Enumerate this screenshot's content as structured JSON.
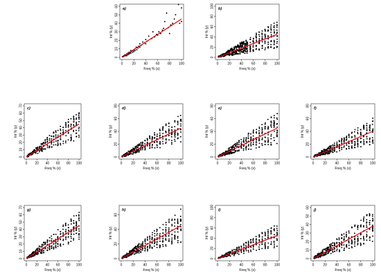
{
  "chart_data": [
    {
      "type": "scatter",
      "panel": "a)",
      "xlabel": "Freq % (x)",
      "ylabel": "Int % (y)",
      "xlim": [
        0,
        100
      ],
      "ylim": [
        0,
        60
      ],
      "xticks": [
        0,
        20,
        40,
        60,
        80,
        100
      ],
      "yticks": [
        0,
        10,
        20,
        30,
        40,
        50,
        60
      ],
      "fit": {
        "slope": 0.45,
        "intercept": 0
      },
      "series": [
        {
          "values": [
            [
              1,
              1
            ],
            [
              2,
              1
            ],
            [
              3,
              2
            ],
            [
              3,
              1
            ],
            [
              4,
              2
            ],
            [
              5,
              2
            ],
            [
              5,
              3
            ],
            [
              6,
              2
            ],
            [
              7,
              3
            ],
            [
              8,
              4
            ],
            [
              8,
              2
            ],
            [
              9,
              4
            ],
            [
              10,
              5
            ],
            [
              10,
              3
            ],
            [
              11,
              5
            ],
            [
              12,
              6
            ],
            [
              12,
              4
            ],
            [
              13,
              5
            ],
            [
              14,
              6
            ],
            [
              15,
              8
            ],
            [
              15,
              5
            ],
            [
              16,
              7
            ],
            [
              18,
              8
            ],
            [
              18,
              6
            ],
            [
              20,
              9
            ],
            [
              20,
              7
            ],
            [
              22,
              10
            ],
            [
              22,
              8
            ],
            [
              24,
              12
            ],
            [
              25,
              9
            ],
            [
              27,
              11
            ],
            [
              28,
              13
            ],
            [
              30,
              12
            ],
            [
              30,
              16
            ],
            [
              32,
              14
            ],
            [
              35,
              18
            ],
            [
              38,
              17
            ],
            [
              40,
              16
            ],
            [
              40,
              21
            ],
            [
              42,
              19
            ],
            [
              45,
              25
            ],
            [
              50,
              22
            ],
            [
              52,
              30
            ],
            [
              55,
              24
            ],
            [
              58,
              27
            ],
            [
              60,
              26
            ],
            [
              62,
              30
            ],
            [
              65,
              28
            ],
            [
              68,
              32
            ],
            [
              70,
              34
            ],
            [
              72,
              42
            ],
            [
              75,
              52
            ],
            [
              78,
              35
            ],
            [
              80,
              28
            ],
            [
              82,
              38
            ],
            [
              85,
              40
            ],
            [
              88,
              45
            ],
            [
              90,
              50
            ],
            [
              95,
              62
            ],
            [
              97,
              40
            ],
            [
              100,
              42
            ],
            [
              100,
              58
            ]
          ]
        }
      ]
    },
    {
      "type": "scatter",
      "panel": "b)",
      "xlabel": "Freq % (x)",
      "ylabel": "Int % (y)",
      "xlim": [
        0,
        100
      ],
      "ylim": [
        0,
        100
      ],
      "xticks": [
        0,
        20,
        40,
        60,
        80,
        100
      ],
      "yticks": [
        0,
        20,
        40,
        60,
        80,
        100
      ],
      "fit": {
        "slope": 0.45,
        "intercept": 0
      },
      "generated": {
        "columns": [
          2,
          4,
          6,
          8,
          10,
          12,
          14,
          16,
          18,
          20,
          22,
          24,
          26,
          28,
          30,
          32,
          34,
          36,
          38,
          40,
          42,
          44,
          46,
          48,
          50,
          55,
          60,
          65,
          70,
          75,
          80,
          85,
          90,
          95,
          100
        ],
        "spread": 0.6,
        "perColumn": 9,
        "max": 90
      }
    },
    {
      "type": "scatter",
      "panel": "c)",
      "xlabel": "Freq % (x)",
      "ylabel": "Int % (y)",
      "xlim": [
        0,
        100
      ],
      "ylim": [
        0,
        70
      ],
      "xticks": [
        0,
        20,
        40,
        60,
        80,
        100
      ],
      "yticks": [
        0,
        10,
        20,
        30,
        40,
        50,
        60,
        70
      ],
      "fit": {
        "slope": 0.45,
        "intercept": 0
      },
      "generated": {
        "columns": [
          2,
          4,
          6,
          8,
          10,
          12,
          14,
          16,
          18,
          20,
          22,
          25,
          28,
          30,
          33,
          36,
          40,
          44,
          48,
          52,
          56,
          60,
          65,
          70,
          75,
          80,
          85,
          90,
          95,
          100
        ],
        "spread": 0.45,
        "perColumn": 6,
        "max": 70
      }
    },
    {
      "type": "scatter",
      "panel": "d)",
      "xlabel": "Freq % (x)",
      "ylabel": "Int % (y)",
      "xlim": [
        0,
        100
      ],
      "ylim": [
        0,
        80
      ],
      "xticks": [
        0,
        20,
        40,
        60,
        80,
        100
      ],
      "yticks": [
        0,
        20,
        40,
        60,
        80
      ],
      "fit": {
        "slope": 0.45,
        "intercept": 0
      },
      "generated": {
        "columns": [
          2,
          4,
          6,
          8,
          10,
          12,
          14,
          16,
          18,
          20,
          22,
          24,
          26,
          28,
          30,
          33,
          36,
          40,
          44,
          48,
          52,
          56,
          60,
          65,
          70,
          75,
          80,
          85,
          90,
          95,
          100
        ],
        "spread": 0.5,
        "perColumn": 7,
        "max": 75
      }
    },
    {
      "type": "scatter",
      "panel": "e)",
      "xlabel": "Freq % (x)",
      "ylabel": "Int % (y)",
      "xlim": [
        0,
        100
      ],
      "ylim": [
        0,
        80
      ],
      "xticks": [
        0,
        20,
        40,
        60,
        80,
        100
      ],
      "yticks": [
        0,
        20,
        40,
        60,
        80
      ],
      "fit": {
        "slope": 0.45,
        "intercept": 0
      },
      "generated": {
        "columns": [
          2,
          4,
          6,
          8,
          10,
          12,
          14,
          16,
          18,
          20,
          22,
          24,
          26,
          28,
          30,
          33,
          36,
          40,
          44,
          48,
          52,
          56,
          60,
          65,
          70,
          75,
          80,
          85,
          90,
          95,
          100
        ],
        "spread": 0.55,
        "perColumn": 8,
        "max": 78
      }
    },
    {
      "type": "scatter",
      "panel": "f)",
      "xlabel": "Freq % (x)",
      "ylabel": "Int % (y)",
      "xlim": [
        0,
        100
      ],
      "ylim": [
        0,
        80
      ],
      "xticks": [
        0,
        20,
        40,
        60,
        80,
        100
      ],
      "yticks": [
        0,
        20,
        40,
        60,
        80
      ],
      "fit": {
        "slope": 0.4,
        "intercept": 0
      },
      "generated": {
        "columns": [
          2,
          4,
          6,
          8,
          10,
          12,
          14,
          16,
          18,
          20,
          22,
          24,
          26,
          28,
          30,
          33,
          36,
          40,
          44,
          48,
          52,
          56,
          60,
          65,
          70,
          75,
          80,
          85,
          90,
          95,
          100
        ],
        "spread": 0.5,
        "perColumn": 8,
        "max": 72
      }
    },
    {
      "type": "scatter",
      "panel": "g)",
      "xlabel": "Freq % (x)",
      "ylabel": "Int % (y)",
      "xlim": [
        0,
        100
      ],
      "ylim": [
        0,
        70
      ],
      "xticks": [
        0,
        20,
        40,
        60,
        80,
        100
      ],
      "yticks": [
        0,
        10,
        20,
        30,
        40,
        50,
        60,
        70
      ],
      "fit": {
        "slope": 0.45,
        "intercept": 0
      },
      "generated": {
        "columns": [
          2,
          4,
          6,
          8,
          10,
          12,
          14,
          16,
          18,
          20,
          22,
          25,
          28,
          30,
          33,
          36,
          40,
          44,
          48,
          52,
          56,
          60,
          65,
          70,
          75,
          80,
          85,
          90,
          95,
          100
        ],
        "spread": 0.45,
        "perColumn": 6,
        "max": 68
      }
    },
    {
      "type": "scatter",
      "panel": "h)",
      "xlabel": "Freq % (x)",
      "ylabel": "Int % (y)",
      "xlim": [
        0,
        100
      ],
      "ylim": [
        0,
        70
      ],
      "xticks": [
        0,
        20,
        40,
        60,
        80,
        100
      ],
      "yticks": [
        0,
        20,
        40,
        60
      ],
      "fit": {
        "slope": 0.45,
        "intercept": 0
      },
      "generated": {
        "columns": [
          2,
          4,
          6,
          8,
          10,
          12,
          14,
          16,
          18,
          20,
          22,
          24,
          26,
          28,
          30,
          33,
          36,
          40,
          44,
          48,
          52,
          56,
          60,
          65,
          70,
          75,
          80,
          85,
          90,
          95,
          100
        ],
        "spread": 0.5,
        "perColumn": 8,
        "max": 70
      }
    },
    {
      "type": "scatter",
      "panel": "i)",
      "xlabel": "Freq % (x)",
      "ylabel": "Int % (y)",
      "xlim": [
        0,
        100
      ],
      "ylim": [
        0,
        100
      ],
      "xticks": [
        0,
        20,
        40,
        60,
        80,
        100
      ],
      "yticks": [
        0,
        20,
        40,
        60,
        80,
        100
      ],
      "fit": {
        "slope": 0.45,
        "intercept": 0
      },
      "generated": {
        "columns": [
          2,
          4,
          6,
          8,
          10,
          12,
          14,
          16,
          18,
          20,
          22,
          25,
          28,
          30,
          33,
          36,
          40,
          44,
          48,
          52,
          56,
          60,
          65,
          70,
          75,
          80,
          85,
          90,
          95,
          100
        ],
        "spread": 0.5,
        "perColumn": 6,
        "max": 90
      }
    },
    {
      "type": "scatter",
      "panel": "j)",
      "xlabel": "Freq % (x)",
      "ylabel": "Int % (y)",
      "xlim": [
        0,
        100
      ],
      "ylim": [
        0,
        60
      ],
      "xticks": [
        0,
        20,
        40,
        60,
        80,
        100
      ],
      "yticks": [
        0,
        10,
        20,
        30,
        40,
        50,
        60
      ],
      "fit": {
        "slope": 0.38,
        "intercept": 0
      },
      "generated": {
        "columns": [
          2,
          4,
          6,
          8,
          10,
          12,
          14,
          16,
          18,
          20,
          22,
          24,
          26,
          28,
          30,
          33,
          36,
          40,
          44,
          48,
          52,
          56,
          60,
          65,
          70,
          75,
          80,
          85,
          90,
          95,
          100
        ],
        "spread": 0.5,
        "perColumn": 8,
        "max": 60
      }
    }
  ],
  "colors": {
    "points": "#000000",
    "fit_line": "#e8000b"
  }
}
